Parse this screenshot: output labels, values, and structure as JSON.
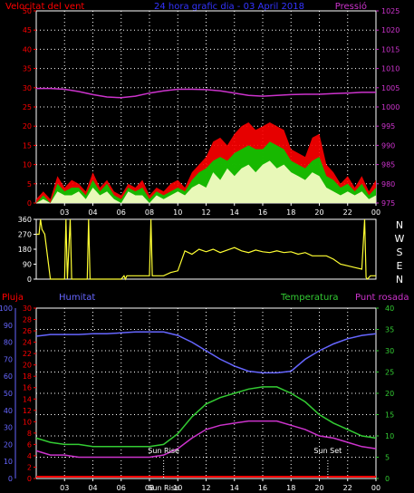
{
  "header": {
    "wind_speed_label": "Velocitat del vent",
    "title": "24 hora grafic dia - 03 April 2018",
    "pressure_label": "Pressió"
  },
  "direction_labels": [
    "N",
    "W",
    "S",
    "E",
    "N"
  ],
  "bottom_header": {
    "rain_label": "Pluja",
    "humidity_label": "Humitat",
    "temperature_label": "Temperatura",
    "dewpoint_label": "Punt rosada"
  },
  "annotations": {
    "sun_rise": "Sun Rise",
    "sun_set": "Sun Set",
    "sun_rise_axis": "Sun Rise",
    "sun_rise_x": 9.0,
    "sun_set_x": 20.6
  },
  "colors": {
    "wind_avg": "#ff0000",
    "wind_gust": "#00cc00",
    "wind_low": "#ffffcc",
    "pressure": "#cc33cc",
    "direction": "#ffff33",
    "humidity": "#6666ff",
    "temperature": "#33cc33",
    "dewpoint": "#cc33cc",
    "rain": "#ff0000",
    "grid": "#ffffff"
  },
  "chart_data": [
    {
      "type": "line",
      "name": "wind-pressure",
      "x_ticks": [
        "03",
        "04",
        "06",
        "08",
        "10",
        "12",
        "14",
        "16",
        "18",
        "20",
        "22",
        "00"
      ],
      "y_left_ticks": [
        "0",
        "5",
        "10",
        "15",
        "20",
        "25",
        "30",
        "35",
        "40",
        "45",
        "50"
      ],
      "y_right_ticks": [
        "975",
        "980",
        "985",
        "990",
        "995",
        "1000",
        "1005",
        "1010",
        "1015",
        "1020",
        "1025"
      ],
      "ylim_left": [
        0,
        50
      ],
      "ylim_right": [
        975,
        1025
      ],
      "grid": true,
      "series": [
        {
          "name": "Pressió",
          "axis": "right",
          "x": [
            0,
            1,
            2,
            3,
            4,
            5,
            6,
            7,
            8,
            9,
            10,
            11,
            12,
            13,
            14,
            15,
            16,
            17,
            18,
            19,
            20,
            21,
            22,
            23,
            24
          ],
          "values": [
            1004.8,
            1004.8,
            1004.6,
            1004.0,
            1003.2,
            1002.6,
            1002.4,
            1002.8,
            1003.6,
            1004.2,
            1004.6,
            1004.6,
            1004.5,
            1004.2,
            1003.6,
            1003.0,
            1002.8,
            1003.0,
            1003.2,
            1003.3,
            1003.3,
            1003.5,
            1003.6,
            1003.8,
            1003.8
          ]
        },
        {
          "name": "wind-red",
          "axis": "left",
          "x": [
            0,
            0.5,
            1,
            1.5,
            2,
            2.5,
            3,
            3.5,
            4,
            4.5,
            5,
            5.5,
            6,
            6.5,
            7,
            7.5,
            8,
            8.5,
            9,
            9.5,
            10,
            10.5,
            11,
            11.5,
            12,
            12.5,
            13,
            13.5,
            14,
            14.5,
            15,
            15.5,
            16,
            16.5,
            17,
            17.5,
            18,
            18.5,
            19,
            19.5,
            20,
            20.5,
            21,
            21.5,
            22,
            22.5,
            23,
            23.5,
            24
          ],
          "values": [
            1,
            3,
            1,
            7,
            4,
            6,
            5,
            3,
            8,
            4,
            6,
            3,
            2,
            5,
            4,
            6,
            2,
            4,
            3,
            5,
            6,
            4,
            8,
            10,
            12,
            16,
            17,
            15,
            18,
            20,
            21,
            19,
            20,
            21,
            20,
            19,
            14,
            13,
            12,
            17,
            18,
            10,
            8,
            5,
            7,
            4,
            7,
            3,
            6
          ]
        },
        {
          "name": "wind-green",
          "axis": "left",
          "x": [
            0,
            0.5,
            1,
            1.5,
            2,
            2.5,
            3,
            3.5,
            4,
            4.5,
            5,
            5.5,
            6,
            6.5,
            7,
            7.5,
            8,
            8.5,
            9,
            9.5,
            10,
            10.5,
            11,
            11.5,
            12,
            12.5,
            13,
            13.5,
            14,
            14.5,
            15,
            15.5,
            16,
            16.5,
            17,
            17.5,
            18,
            18.5,
            19,
            19.5,
            20,
            20.5,
            21,
            21.5,
            22,
            22.5,
            23,
            23.5,
            24
          ],
          "values": [
            0,
            2,
            0,
            5,
            3,
            4,
            4,
            2,
            6,
            3,
            5,
            2,
            1,
            4,
            3,
            4,
            1,
            3,
            2,
            3,
            4,
            3,
            6,
            8,
            9,
            11,
            12,
            11,
            13,
            14,
            15,
            14,
            14,
            16,
            15,
            14,
            11,
            10,
            9,
            11,
            12,
            7,
            6,
            4,
            5,
            3,
            5,
            2,
            4
          ]
        },
        {
          "name": "wind-light",
          "axis": "left",
          "x": [
            0,
            0.5,
            1,
            1.5,
            2,
            2.5,
            3,
            3.5,
            4,
            4.5,
            5,
            5.5,
            6,
            6.5,
            7,
            7.5,
            8,
            8.5,
            9,
            9.5,
            10,
            10.5,
            11,
            11.5,
            12,
            12.5,
            13,
            13.5,
            14,
            14.5,
            15,
            15.5,
            16,
            16.5,
            17,
            17.5,
            18,
            18.5,
            19,
            19.5,
            20,
            20.5,
            21,
            21.5,
            22,
            22.5,
            23,
            23.5,
            24
          ],
          "values": [
            0,
            1,
            0,
            3,
            2,
            2,
            3,
            1,
            4,
            2,
            3,
            1,
            0,
            3,
            2,
            2,
            0,
            2,
            1,
            2,
            3,
            2,
            4,
            5,
            4,
            8,
            6,
            9,
            7,
            9,
            10,
            8,
            10,
            11,
            9,
            10,
            8,
            7,
            6,
            8,
            7,
            4,
            3,
            2,
            3,
            2,
            3,
            1,
            2
          ]
        }
      ]
    },
    {
      "type": "line",
      "name": "wind-direction",
      "y_left_ticks": [
        "0",
        "90",
        "180",
        "270",
        "360"
      ],
      "ylim": [
        0,
        360
      ],
      "series": [
        {
          "name": "direction",
          "x": [
            0,
            0.2,
            0.3,
            0.4,
            0.6,
            1.0,
            2.0,
            2.1,
            2.2,
            2.4,
            2.5,
            3.6,
            3.7,
            3.8,
            4.0,
            6.0,
            6.2,
            6.3,
            6.4,
            6.6,
            8.0,
            8.1,
            8.2,
            9.0,
            9.5,
            10.0,
            10.5,
            11.0,
            11.5,
            12.0,
            12.5,
            13.0,
            13.5,
            14.0,
            14.5,
            15.0,
            15.5,
            16.0,
            16.5,
            17.0,
            17.5,
            18.0,
            18.5,
            19.0,
            19.5,
            20.0,
            20.5,
            21.0,
            21.5,
            22.0,
            22.5,
            23.0,
            23.2,
            23.3,
            23.4,
            23.6,
            24.0
          ],
          "values": [
            270,
            270,
            360,
            300,
            270,
            0,
            0,
            360,
            0,
            360,
            0,
            0,
            360,
            0,
            0,
            0,
            20,
            0,
            20,
            20,
            20,
            360,
            20,
            20,
            40,
            50,
            170,
            150,
            180,
            165,
            180,
            160,
            175,
            190,
            170,
            160,
            175,
            165,
            160,
            170,
            160,
            165,
            150,
            160,
            140,
            140,
            140,
            120,
            90,
            80,
            70,
            60,
            360,
            10,
            0,
            20,
            20
          ]
        }
      ]
    },
    {
      "type": "line",
      "name": "temp-humidity",
      "y_rain_ticks": [
        "0",
        "10",
        "20",
        "30",
        "40",
        "50",
        "60",
        "70",
        "80",
        "90",
        "100"
      ],
      "y_hum_ticks": [
        "0",
        "2",
        "4",
        "6",
        "8",
        "10",
        "12",
        "14",
        "16",
        "18",
        "20",
        "22",
        "24",
        "26",
        "28",
        "30"
      ],
      "y_temp_ticks": [
        "0",
        "5",
        "10",
        "15",
        "20",
        "25",
        "30",
        "35",
        "40"
      ],
      "ylim_temp": [
        0,
        40
      ],
      "series": [
        {
          "name": "Humitat",
          "axis": "humidity",
          "x": [
            0,
            1,
            2,
            3,
            4,
            5,
            6,
            7,
            8,
            9,
            10,
            11,
            12,
            13,
            14,
            15,
            16,
            17,
            18,
            19,
            20,
            21,
            22,
            23,
            24
          ],
          "values": [
            83.5,
            84.5,
            84.5,
            84.5,
            85,
            85,
            85.5,
            86,
            86,
            86,
            84,
            80,
            75,
            70,
            66,
            63,
            62,
            62,
            63,
            70,
            75,
            79,
            82,
            84,
            85
          ]
        },
        {
          "name": "Temperatura",
          "axis": "temp",
          "x": [
            0,
            1,
            2,
            3,
            4,
            5,
            6,
            7,
            8,
            9,
            10,
            11,
            12,
            13,
            14,
            15,
            16,
            17,
            18,
            19,
            20,
            21,
            22,
            23,
            24
          ],
          "values": [
            9.5,
            8.5,
            8,
            8,
            7.5,
            7.5,
            7.5,
            7.5,
            7.5,
            8,
            10.5,
            14.5,
            17.5,
            19,
            20,
            21,
            21.5,
            21.5,
            20,
            18,
            15,
            13,
            11.5,
            10,
            9.5
          ]
        },
        {
          "name": "Punt rosada",
          "axis": "temp",
          "x": [
            0,
            1,
            2,
            3,
            4,
            5,
            6,
            7,
            8,
            9,
            10,
            11,
            12,
            13,
            14,
            15,
            16,
            17,
            18,
            19,
            20,
            21,
            22,
            23,
            24
          ],
          "values": [
            6.5,
            5.5,
            5.5,
            5,
            5,
            5,
            5,
            5,
            5,
            5.5,
            7,
            9.5,
            11.5,
            12.5,
            13,
            13.5,
            13.5,
            13.5,
            12.5,
            11.5,
            10,
            9.5,
            8.5,
            7.5,
            7
          ]
        },
        {
          "name": "Pluja",
          "axis": "rain",
          "x": [
            0,
            24
          ],
          "values": [
            0,
            0
          ]
        }
      ]
    }
  ]
}
